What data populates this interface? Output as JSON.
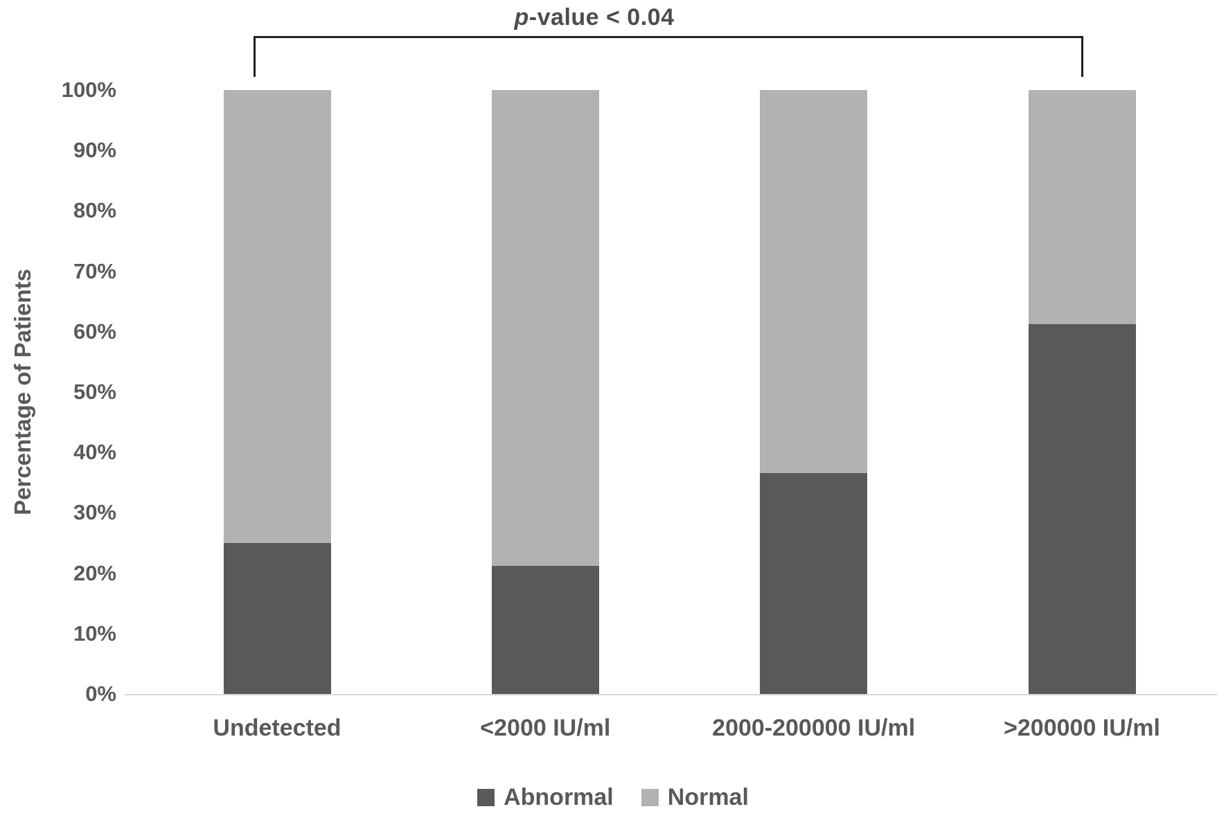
{
  "figure": {
    "background": "#ffffff",
    "text_color": "#595959"
  },
  "annotation": {
    "p_italic": "p",
    "text_rest": "-value < 0.04"
  },
  "chart_data": {
    "type": "bar",
    "subtype": "stacked-100-percent",
    "title": "",
    "xlabel": "",
    "ylabel": "Percentage of Patients",
    "categories": [
      "Undetected",
      "<2000 IU/ml",
      "2000-200000 IU/ml",
      ">200000 IU/ml"
    ],
    "series": [
      {
        "name": "Abnormal",
        "color": "#595959",
        "values": [
          25.0,
          21.2,
          36.6,
          61.2
        ]
      },
      {
        "name": "Normal",
        "color": "#b2b2b2",
        "values": [
          75.0,
          78.8,
          63.4,
          38.8
        ]
      }
    ],
    "ylim": [
      0,
      100
    ],
    "yticks": [
      "0%",
      "10%",
      "20%",
      "30%",
      "40%",
      "50%",
      "60%",
      "70%",
      "80%",
      "90%",
      "100%"
    ],
    "grid": false,
    "legend_position": "bottom",
    "annotations": [
      {
        "text": "p-value < 0.04",
        "spans": [
          "Undetected",
          ">200000 IU/ml"
        ]
      }
    ]
  }
}
